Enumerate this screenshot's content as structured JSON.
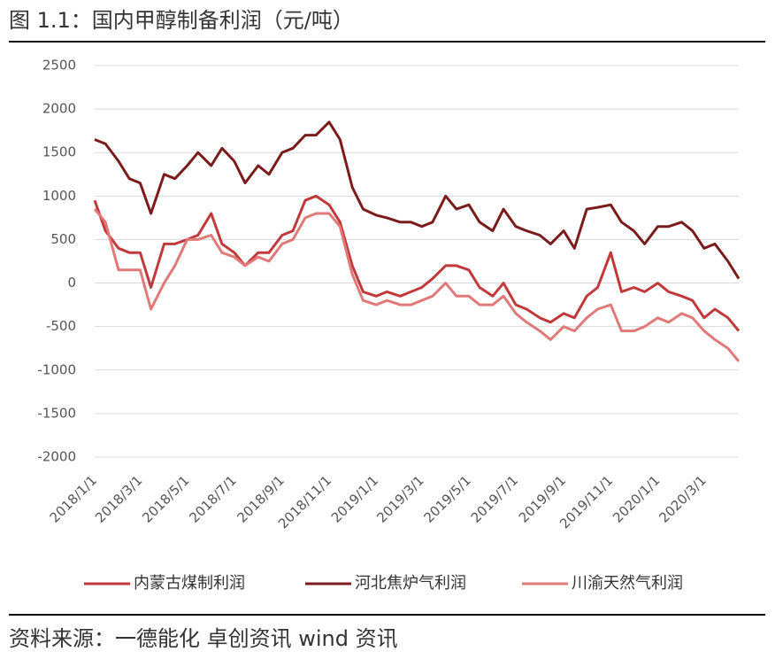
{
  "title": "图 1.1：国内甲醇制备利润（元/吨）",
  "source": "资料来源：一德能化  卓创资讯  wind 资讯",
  "chart_data": {
    "type": "line",
    "x": [
      "2018/1/1",
      "2018/1/15",
      "2018/2/1",
      "2018/2/15",
      "2018/3/1",
      "2018/3/15",
      "2018/4/1",
      "2018/4/15",
      "2018/5/1",
      "2018/5/15",
      "2018/6/1",
      "2018/6/15",
      "2018/7/1",
      "2018/7/15",
      "2018/8/1",
      "2018/8/15",
      "2018/9/1",
      "2018/9/15",
      "2018/10/1",
      "2018/10/15",
      "2018/11/1",
      "2018/11/15",
      "2018/12/1",
      "2018/12/15",
      "2019/1/1",
      "2019/1/15",
      "2019/2/1",
      "2019/2/15",
      "2019/3/1",
      "2019/3/15",
      "2019/4/1",
      "2019/4/15",
      "2019/5/1",
      "2019/5/15",
      "2019/6/1",
      "2019/6/15",
      "2019/7/1",
      "2019/7/15",
      "2019/8/1",
      "2019/8/15",
      "2019/9/1",
      "2019/9/15",
      "2019/10/1",
      "2019/10/15",
      "2019/11/1",
      "2019/11/15",
      "2019/12/1",
      "2019/12/15",
      "2020/1/1",
      "2020/1/15",
      "2020/2/1",
      "2020/2/15",
      "2020/3/1",
      "2020/3/15",
      "2020/4/1",
      "2020/4/15"
    ],
    "series": [
      {
        "name": "内蒙古煤制利润",
        "color": "#c0393b",
        "values": [
          950,
          600,
          400,
          350,
          350,
          -50,
          450,
          450,
          500,
          550,
          800,
          450,
          350,
          200,
          350,
          350,
          550,
          600,
          950,
          1000,
          900,
          700,
          200,
          -100,
          -150,
          -100,
          -150,
          -100,
          -50,
          50,
          200,
          200,
          150,
          -50,
          -150,
          0,
          -250,
          -300,
          -400,
          -450,
          -350,
          -400,
          -150,
          -50,
          350,
          -100,
          -50,
          -100,
          0,
          -100,
          -150,
          -200,
          -400,
          -300,
          -400,
          -550
        ]
      },
      {
        "name": "河北焦炉气利润",
        "color": "#7a1c1c",
        "values": [
          1650,
          1600,
          1400,
          1200,
          1150,
          800,
          1250,
          1200,
          1350,
          1500,
          1350,
          1550,
          1400,
          1150,
          1350,
          1250,
          1500,
          1550,
          1700,
          1700,
          1850,
          1650,
          1100,
          850,
          780,
          750,
          700,
          700,
          650,
          700,
          1000,
          850,
          900,
          700,
          600,
          850,
          650,
          600,
          550,
          450,
          600,
          400,
          850,
          870,
          900,
          700,
          600,
          450,
          650,
          650,
          700,
          600,
          400,
          450,
          250,
          50
        ]
      },
      {
        "name": "川渝天然气利润",
        "color": "#e07a78",
        "values": [
          850,
          700,
          150,
          150,
          150,
          -300,
          0,
          200,
          500,
          500,
          550,
          350,
          300,
          200,
          300,
          250,
          450,
          500,
          750,
          800,
          800,
          650,
          100,
          -200,
          -250,
          -200,
          -250,
          -250,
          -200,
          -150,
          0,
          -150,
          -150,
          -250,
          -250,
          -150,
          -350,
          -450,
          -550,
          -650,
          -500,
          -550,
          -400,
          -300,
          -250,
          -550,
          -550,
          -500,
          -400,
          -450,
          -350,
          -400,
          -550,
          -650,
          -750,
          -900
        ]
      }
    ],
    "xlim": [
      "2018/1/1",
      "2020/4/15"
    ],
    "xticks": [
      "2018/1/1",
      "2018/3/1",
      "2018/5/1",
      "2018/7/1",
      "2018/9/1",
      "2018/11/1",
      "2019/1/1",
      "2019/3/1",
      "2019/5/1",
      "2019/7/1",
      "2019/9/1",
      "2019/11/1",
      "2020/1/1",
      "2020/3/1"
    ],
    "ylim": [
      -2000,
      2500
    ],
    "yticks": [
      -2000,
      -1500,
      -1000,
      -500,
      0,
      500,
      1000,
      1500,
      2000,
      2500
    ],
    "grid": true
  }
}
